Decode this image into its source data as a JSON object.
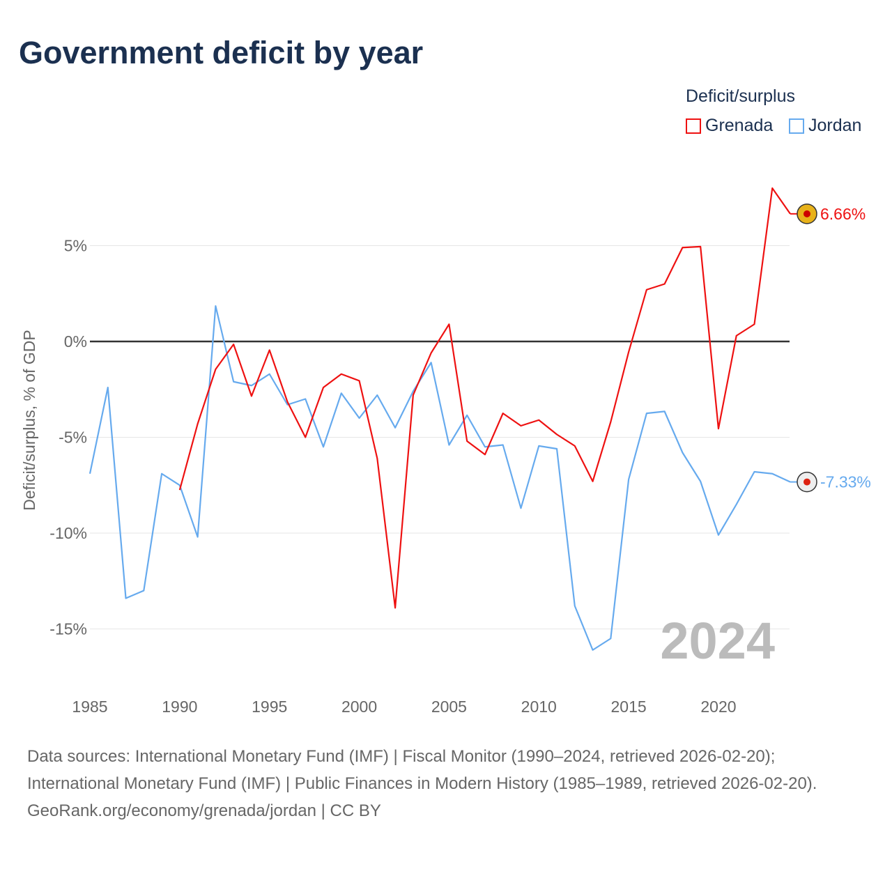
{
  "title": "Government deficit by year",
  "legend": {
    "title": "Deficit/surplus",
    "items": [
      {
        "name": "Grenada",
        "color": "#ee1111"
      },
      {
        "name": "Jordan",
        "color": "#66aaee"
      }
    ]
  },
  "sources": {
    "line1": "Data sources: International Monetary Fund (IMF) | Fiscal Monitor (1990–2024, retrieved 2026-02-20);",
    "line2": "International Monetary Fund (IMF) | Public Finances in Modern History (1985–1989, retrieved 2026-02-20).",
    "credit": "GeoRank.org/economy/grenada/jordan | CC BY"
  },
  "chart_data": {
    "type": "line",
    "title": "Government deficit by year",
    "ylabel": "Deficit/surplus, % of GDP",
    "xlim": [
      1985,
      2024
    ],
    "ylim": [
      -17,
      8.5
    ],
    "x_ticks": [
      1985,
      1990,
      1995,
      2000,
      2005,
      2010,
      2015,
      2020
    ],
    "y_ticks": [
      {
        "v": 5,
        "label": "5%"
      },
      {
        "v": 0,
        "label": "0%"
      },
      {
        "v": -5,
        "label": "-5%"
      },
      {
        "v": -10,
        "label": "-10%"
      },
      {
        "v": -15,
        "label": "-15%"
      }
    ],
    "year_watermark": "2024",
    "series": [
      {
        "name": "Grenada",
        "color": "#ee1111",
        "end_label": "6.66%",
        "start": 1990,
        "values": [
          -7.75,
          -4.3,
          -1.45,
          -0.15,
          -2.85,
          -0.45,
          -3.15,
          -5.0,
          -2.4,
          -1.7,
          -2.05,
          -6.1,
          -13.9,
          -2.8,
          -0.6,
          0.9,
          -5.2,
          -5.9,
          -3.75,
          -4.4,
          -4.1,
          -4.85,
          -5.45,
          -7.3,
          -4.2,
          -0.55,
          2.7,
          3.0,
          4.9,
          4.95,
          -4.55,
          0.3,
          0.9,
          8.0,
          6.66
        ]
      },
      {
        "name": "Jordan",
        "color": "#66aaee",
        "end_label": "-7.33%",
        "start": 1985,
        "values": [
          -6.9,
          -2.4,
          -13.4,
          -13.0,
          -6.9,
          -7.5,
          -10.2,
          1.85,
          -2.1,
          -2.3,
          -1.7,
          -3.3,
          -3.0,
          -5.5,
          -2.7,
          -4.0,
          -2.8,
          -4.5,
          -2.6,
          -1.1,
          -5.4,
          -3.85,
          -5.5,
          -5.4,
          -8.7,
          -5.45,
          -5.6,
          -13.8,
          -16.1,
          -15.5,
          -7.2,
          -3.75,
          -3.65,
          -5.8,
          -7.3,
          -10.1,
          -8.5,
          -6.8,
          -6.9,
          -7.33
        ]
      }
    ]
  }
}
